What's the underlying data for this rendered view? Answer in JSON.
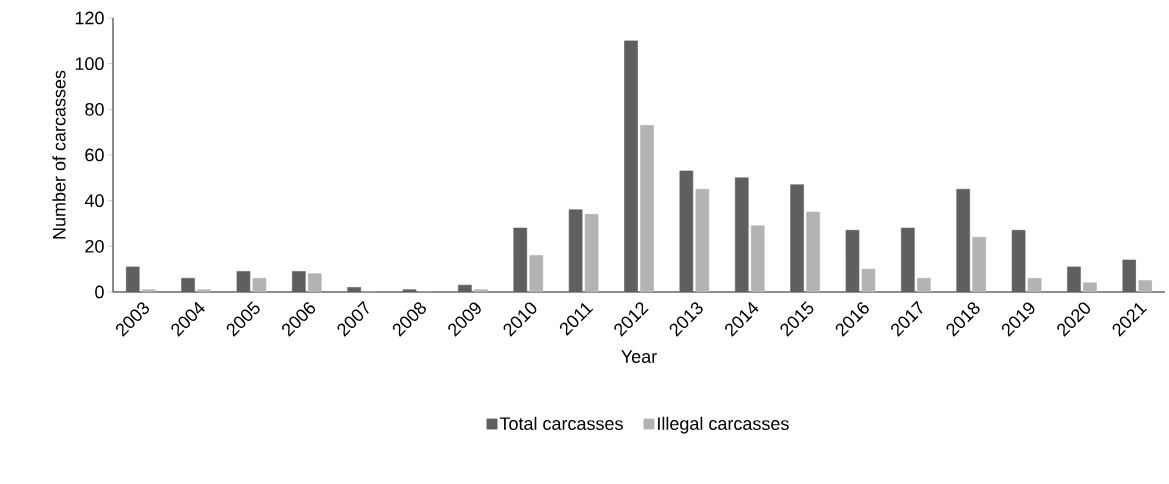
{
  "chart_data": {
    "type": "bar",
    "xlabel": "Year",
    "ylabel": "Number of carcasses",
    "categories": [
      "2003",
      "2004",
      "2005",
      "2006",
      "2007",
      "2008",
      "2009",
      "2010",
      "2011",
      "2012",
      "2013",
      "2014",
      "2015",
      "2016",
      "2017",
      "2018",
      "2019",
      "2020",
      "2021"
    ],
    "series": [
      {
        "name": "Total carcasses",
        "color": "#5f5f5f",
        "values": [
          11,
          6,
          9,
          9,
          2,
          1,
          3,
          28,
          36,
          110,
          53,
          50,
          47,
          27,
          28,
          45,
          27,
          11,
          14
        ]
      },
      {
        "name": "Illegal carcasses",
        "color": "#b3b3b3",
        "values": [
          1,
          1,
          6,
          8,
          0,
          0,
          1,
          16,
          34,
          73,
          45,
          29,
          35,
          10,
          6,
          24,
          6,
          4,
          5
        ]
      }
    ],
    "ylim": [
      0,
      120
    ],
    "yticks": [
      0,
      20,
      40,
      60,
      80,
      100,
      120
    ],
    "grid": false,
    "legend": "bottom"
  }
}
